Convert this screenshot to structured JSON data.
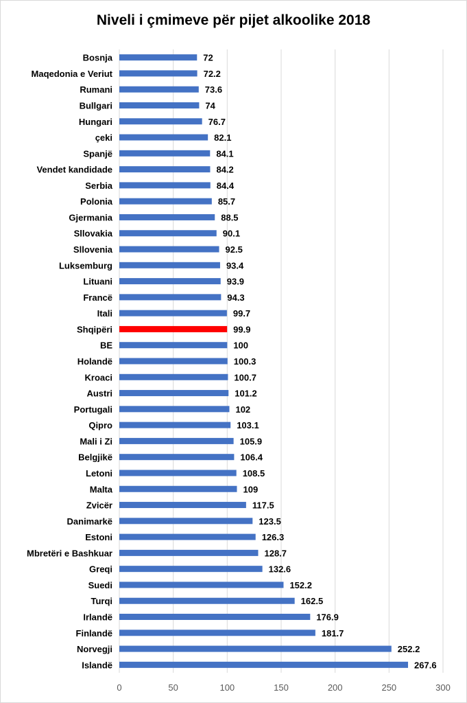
{
  "chart_data": {
    "type": "bar",
    "orientation": "horizontal",
    "title": "Niveli i çmimeve për pijet alkoolike 2018",
    "xlabel": "",
    "ylabel": "",
    "xlim": [
      0,
      300
    ],
    "x_ticks": [
      0,
      50,
      100,
      150,
      200,
      250,
      300
    ],
    "grid": "vertical",
    "colors": {
      "bar": "#4472c4",
      "highlight": "#ff0000",
      "grid": "#d9d9d9"
    },
    "highlight_category": "Shqipëri",
    "categories": [
      "Bosnja",
      "Maqedonia e Veriut",
      "Rumani",
      "Bullgari",
      "Hungari",
      "çeki",
      "Spanjë",
      "Vendet kandidade",
      "Serbia",
      "Polonia",
      "Gjermania",
      "Sllovakia",
      "Sllovenia",
      "Luksemburg",
      "Lituani",
      "Francë",
      "Itali",
      "Shqipëri",
      "BE",
      "Holandë",
      "Kroaci",
      "Austri",
      "Portugali",
      "Qipro",
      "Mali i Zi",
      "Belgjikë",
      "Letoni",
      "Malta",
      "Zvicër",
      "Danimarkë",
      "Estoni",
      "Mbretëri e Bashkuar",
      "Greqi",
      "Suedi",
      "Turqi",
      "Irlandë",
      "Finlandë",
      "Norvegji",
      "Islandë"
    ],
    "values": [
      72,
      72.2,
      73.6,
      74,
      76.7,
      82.1,
      84.1,
      84.2,
      84.4,
      85.7,
      88.5,
      90.1,
      92.5,
      93.4,
      93.9,
      94.3,
      99.7,
      99.9,
      100,
      100.3,
      100.7,
      101.2,
      102,
      103.1,
      105.9,
      106.4,
      108.5,
      109,
      117.5,
      123.5,
      126.3,
      128.7,
      132.6,
      152.2,
      162.5,
      176.9,
      181.7,
      252.2,
      267.6
    ]
  }
}
